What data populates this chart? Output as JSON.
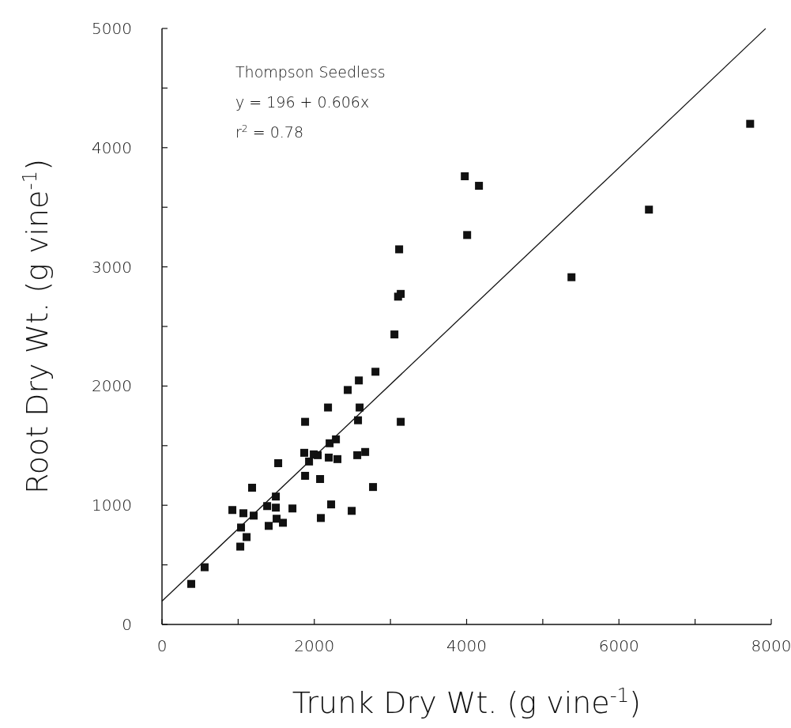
{
  "chart_data": {
    "type": "scatter",
    "xlabel": "Trunk Dry Wt. (g vine$^{-1}$)",
    "ylabel": "Root Dry Wt. (g vine$^{-1}$)",
    "annotations": [
      "Thompson Seedless",
      "y = 196 + 0.606x",
      "r$^{2}$ = 0.78"
    ],
    "xlim": [
      0,
      8000
    ],
    "ylim": [
      0,
      5000
    ],
    "xticks": [
      0,
      {
        "value": 1000,
        "label": null
      },
      2000,
      {
        "value": 3000,
        "label": null
      },
      4000,
      {
        "value": 5000,
        "label": null
      },
      6000,
      {
        "value": 7000,
        "label": null
      },
      8000
    ],
    "yticks": [
      0,
      {
        "value": 500,
        "label": null
      },
      1000,
      {
        "value": 1500,
        "label": null
      },
      2000,
      {
        "value": 2500,
        "label": null
      },
      3000,
      {
        "value": 3500,
        "label": null
      },
      4000,
      {
        "value": 4500,
        "label": null
      },
      5000
    ],
    "grid": false,
    "series": [
      {
        "color": "#111111",
        "marker": "square",
        "x": [
          384,
          560,
          1028,
          1111,
          1038,
          1069,
          924,
          1204,
          1183,
          1401,
          1505,
          1588,
          1381,
          1495,
          1495,
          1526,
          1713,
          1879,
          1868,
          1931,
          1879,
          1993,
          2045,
          2076,
          2086,
          2221,
          2180,
          2190,
          2304,
          2201,
          2284,
          2439,
          2491,
          2574,
          2595,
          2585,
          2564,
          2668,
          2771,
          2803,
          3052,
          3135,
          3976,
          4162,
          4007,
          3114,
          3135,
          3100,
          5377,
          6394,
          7723
        ],
        "values": [
          340,
          480,
          653,
          733,
          813,
          933,
          960,
          913,
          1147,
          827,
          887,
          853,
          993,
          980,
          1073,
          1353,
          973,
          1247,
          1440,
          1367,
          1700,
          1427,
          1420,
          1220,
          893,
          1007,
          1820,
          1400,
          1387,
          1520,
          1553,
          1967,
          953,
          1713,
          1820,
          2047,
          1420,
          1447,
          1153,
          2120,
          2433,
          1700,
          3760,
          3680,
          3267,
          3147,
          2773,
          2750,
          2913,
          3480,
          4200
        ]
      },
      {
        "type": "line",
        "color": "#111111",
        "line_style": "solid",
        "marker": "none",
        "x": [
          0,
          7926
        ],
        "values": [
          196,
          4999
        ]
      }
    ]
  }
}
